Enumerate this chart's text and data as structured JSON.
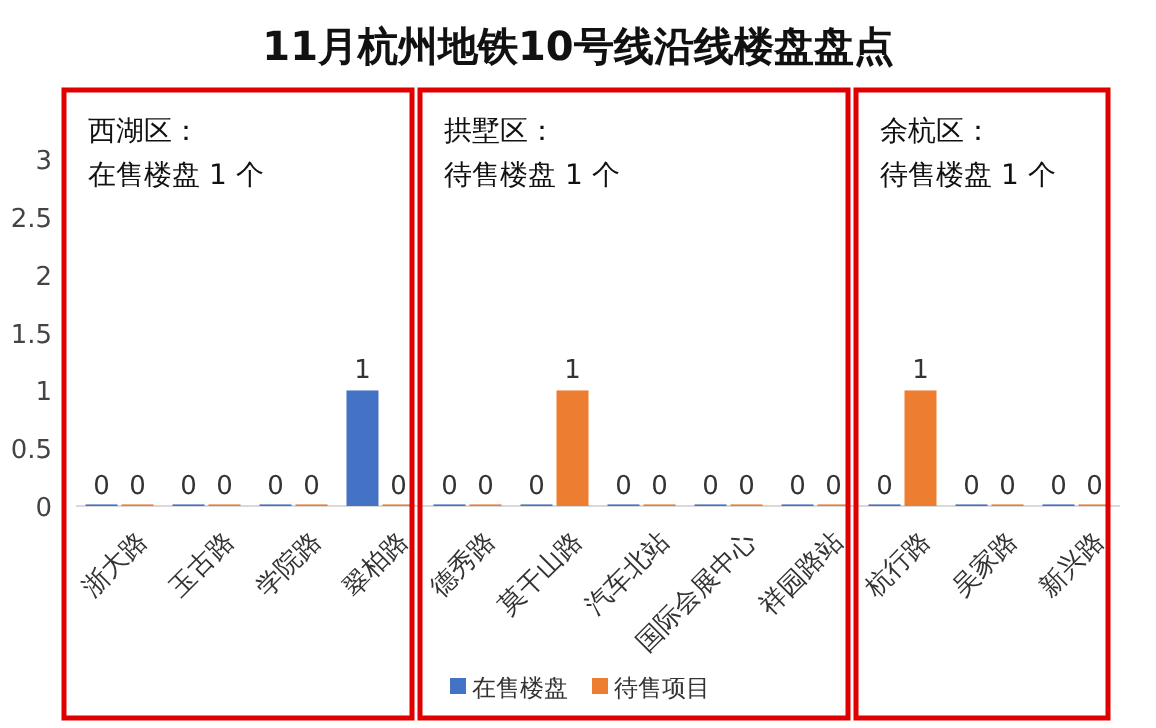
{
  "chart_data": {
    "type": "bar",
    "title": "11月杭州地铁10号线沿线楼盘盘点",
    "categories": [
      "浙大路",
      "玉古路",
      "学院路",
      "翠柏路",
      "德秀路",
      "莫干山路",
      "汽车北站",
      "国际会展中心",
      "祥园路站",
      "杭行路",
      "吴家路",
      "新兴路"
    ],
    "series": [
      {
        "name": "在售楼盘",
        "color": "#4472c4",
        "values": [
          0,
          0,
          0,
          1,
          0,
          0,
          0,
          0,
          0,
          0,
          0,
          0
        ]
      },
      {
        "name": "待售项目",
        "color": "#ed7d31",
        "values": [
          0,
          0,
          0,
          0,
          0,
          1,
          0,
          0,
          0,
          1,
          0,
          0
        ]
      }
    ],
    "ylim": [
      0,
      3.6
    ],
    "yticks": [
      0,
      0.5,
      1,
      1.5,
      2,
      2.5,
      3
    ],
    "grid": false,
    "data_labels": true,
    "legend": "bottom",
    "annotations": [
      "西湖区：",
      "在售楼盘 1 个",
      "拱墅区：",
      "待售楼盘 1 个",
      "余杭区：",
      "待售楼盘 1 个"
    ]
  }
}
